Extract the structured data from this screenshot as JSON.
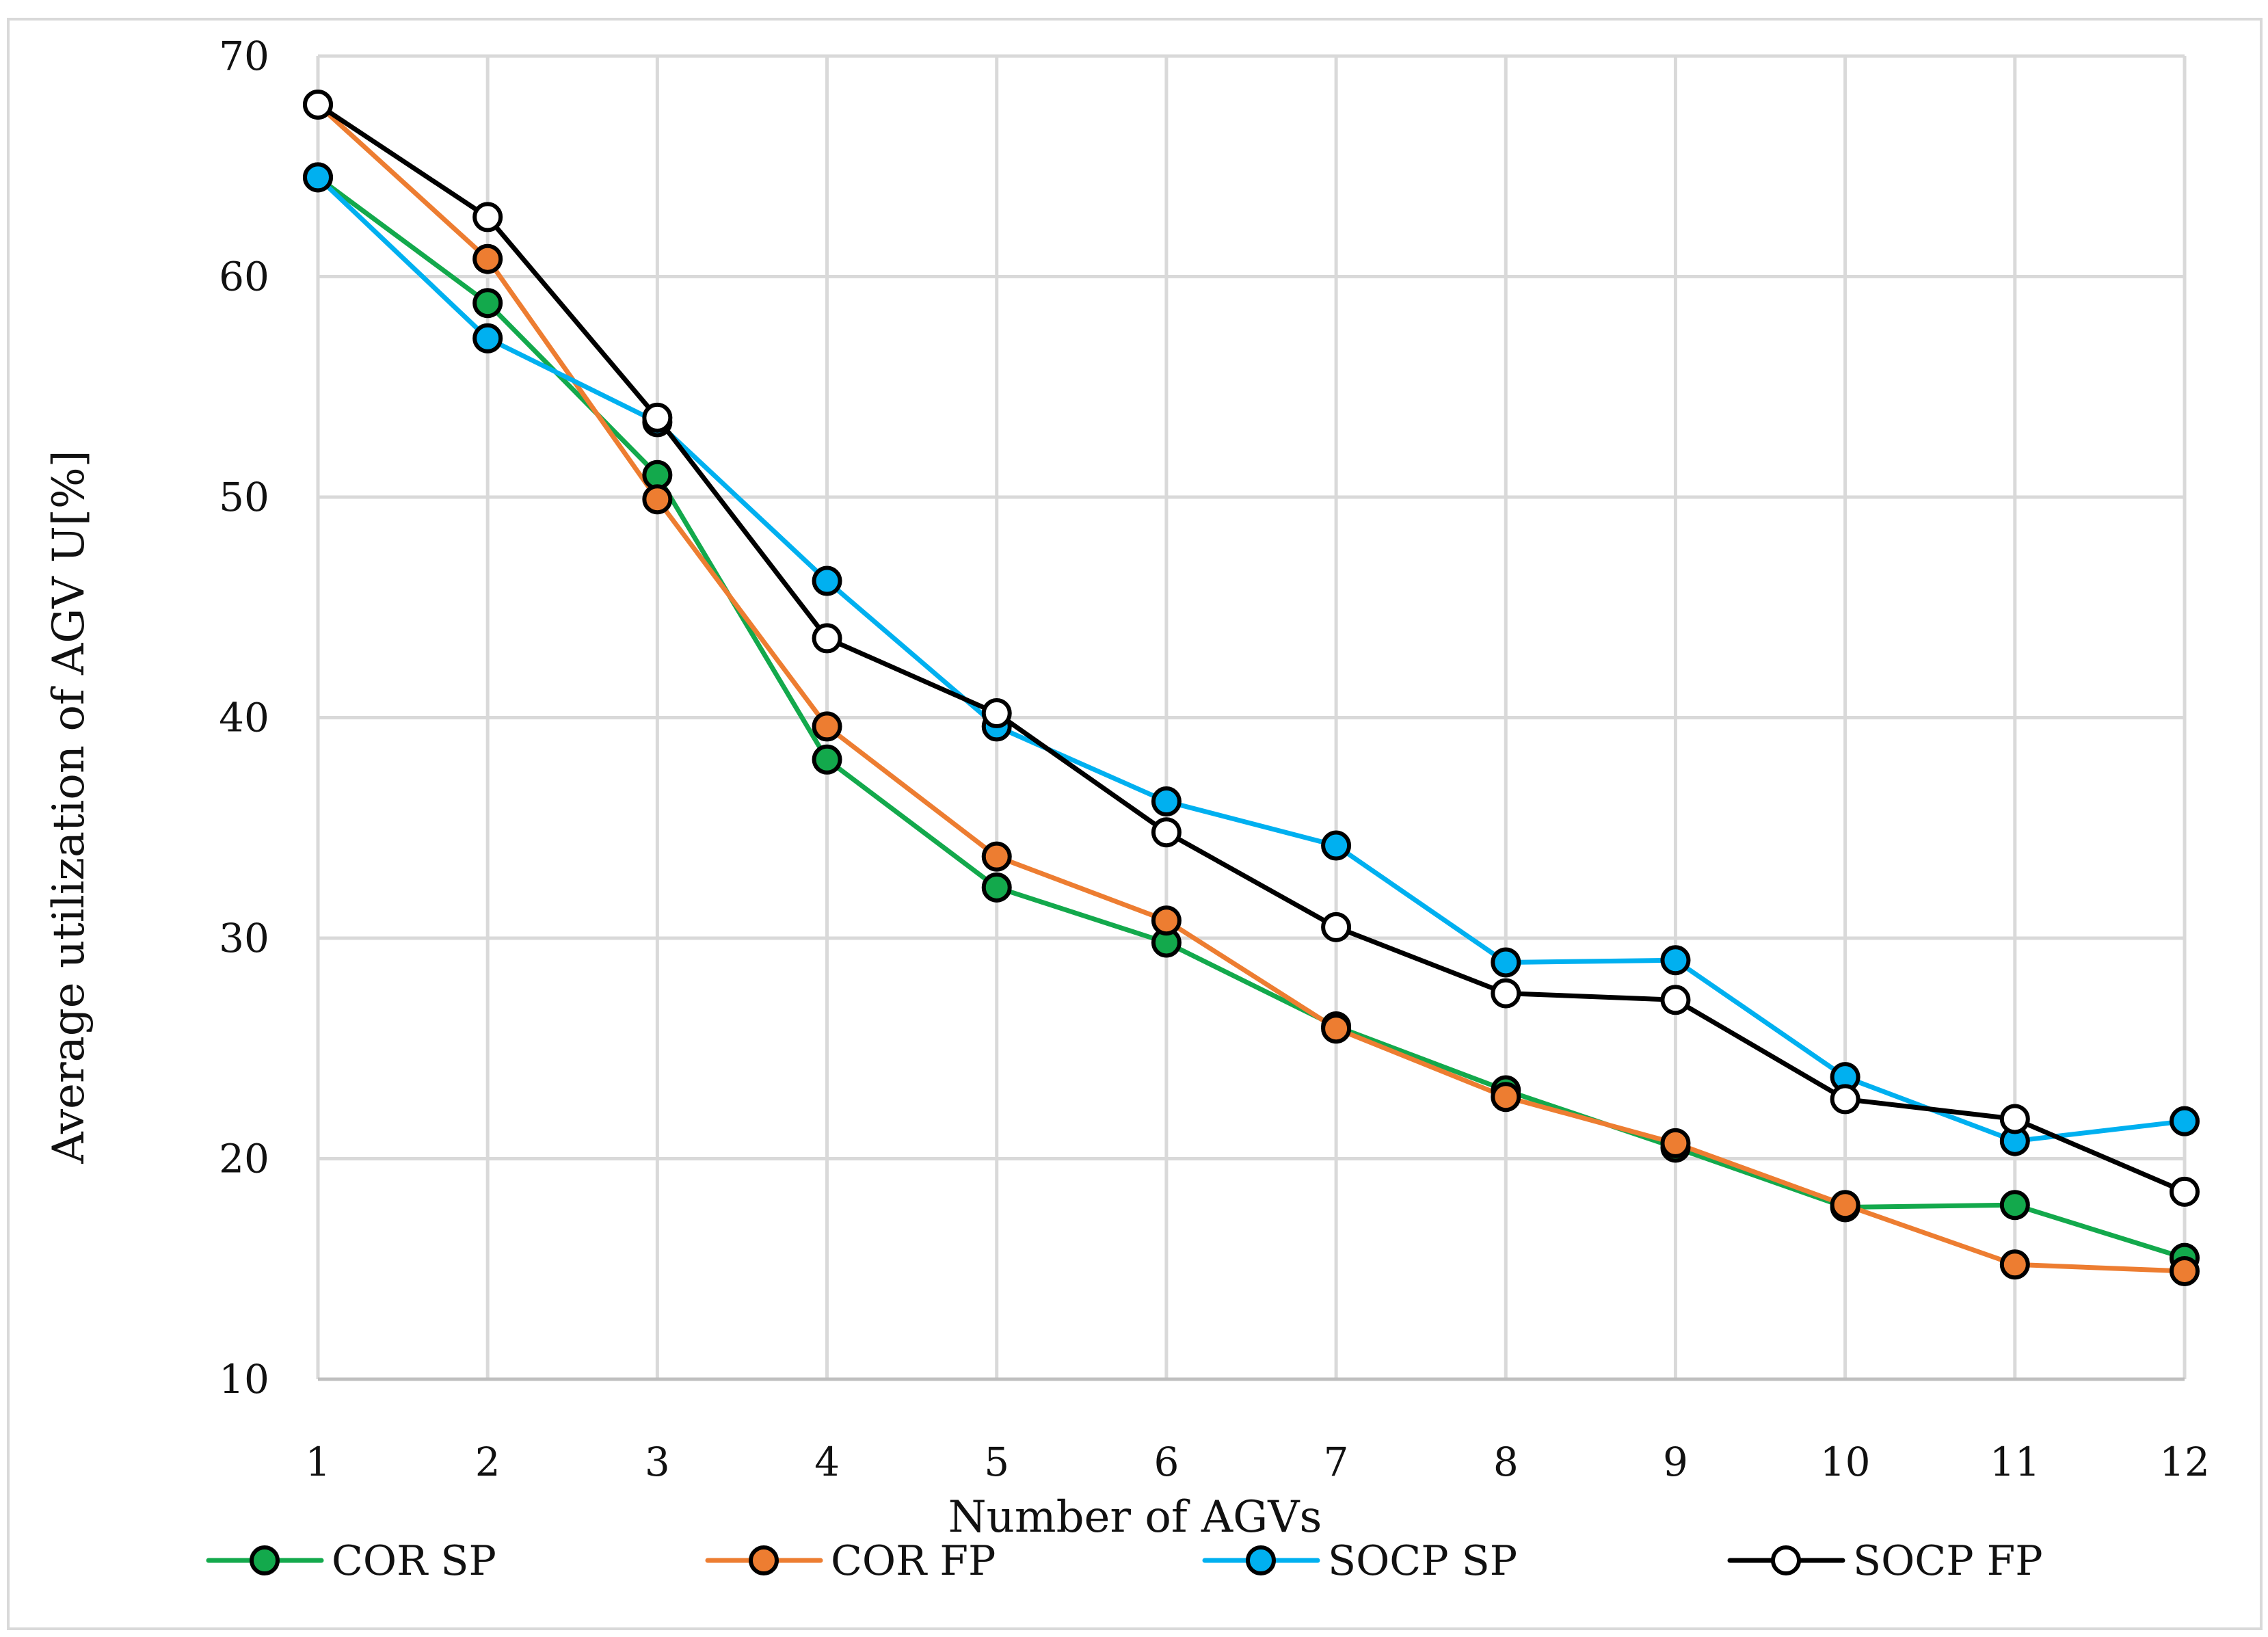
{
  "chart_data": {
    "type": "line",
    "title": "",
    "xlabel": "Number of AGVs",
    "ylabel": "Average utilization of AGV U[%]",
    "categories": [
      "1",
      "2",
      "3",
      "4",
      "5",
      "6",
      "7",
      "8",
      "9",
      "10",
      "11",
      "12"
    ],
    "ylim": [
      10,
      70
    ],
    "yticks": [
      "10",
      "20",
      "30",
      "40",
      "50",
      "60",
      "70"
    ],
    "grid": true,
    "legend_position": "bottom",
    "series": [
      {
        "name": "COR SP",
        "color": "#13a94c",
        "marker_fill": "#13a94c",
        "values": [
          64.5,
          58.8,
          51.0,
          38.1,
          32.3,
          29.8,
          26.0,
          23.1,
          20.5,
          17.8,
          17.9,
          15.5
        ]
      },
      {
        "name": "COR FP",
        "color": "#ed7d31",
        "marker_fill": "#ed7d31",
        "values": [
          67.8,
          60.8,
          49.9,
          39.6,
          33.7,
          30.8,
          25.9,
          22.8,
          20.7,
          17.9,
          15.2,
          14.9
        ]
      },
      {
        "name": "SOCP SP",
        "color": "#00b0f0",
        "marker_fill": "#00b0f0",
        "values": [
          64.5,
          57.2,
          53.4,
          46.2,
          39.6,
          36.2,
          34.2,
          28.9,
          29.0,
          23.7,
          20.8,
          21.7
        ]
      },
      {
        "name": "SOCP FP",
        "color": "#000000",
        "marker_fill": "#ffffff",
        "values": [
          67.8,
          62.7,
          53.6,
          43.6,
          40.2,
          34.8,
          30.5,
          27.5,
          27.2,
          22.7,
          21.8,
          18.5
        ]
      }
    ]
  }
}
